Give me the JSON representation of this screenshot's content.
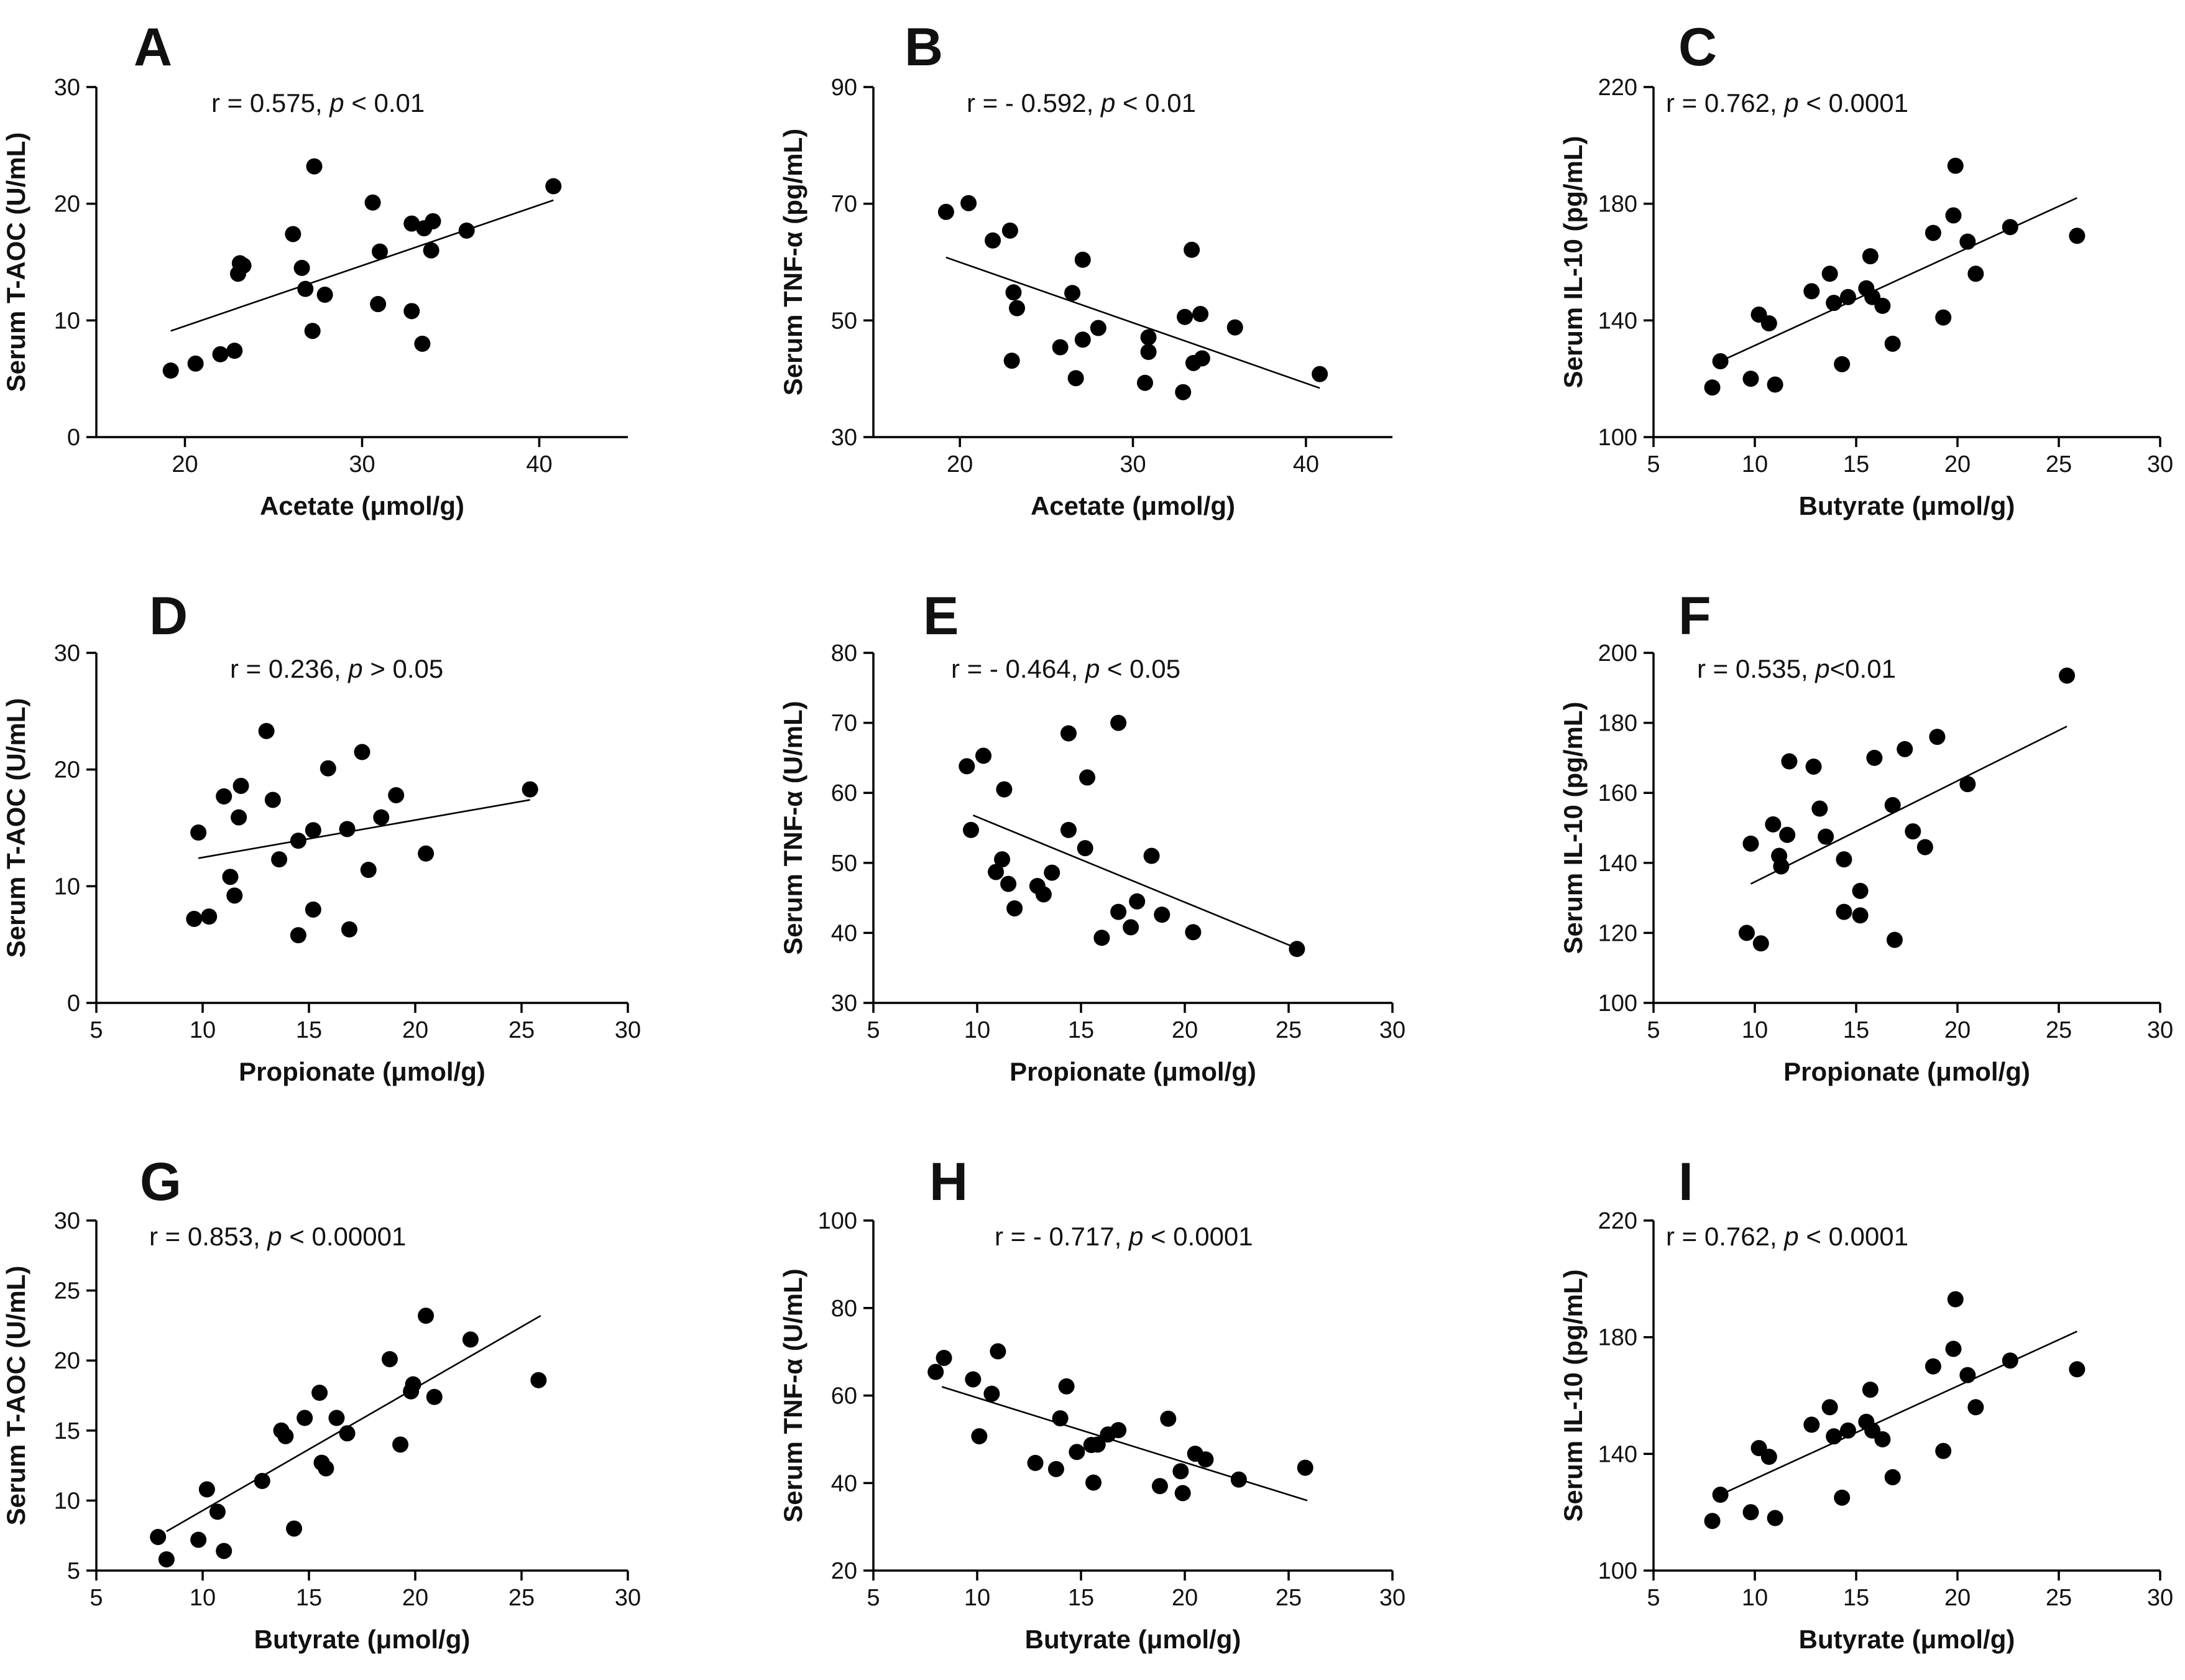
{
  "figure": {
    "background": "#ffffff",
    "mark_color": "#000000"
  },
  "chart_data": [
    {
      "type": "scatter",
      "panel": "A",
      "xlabel": "Acetate (μmol/g)",
      "ylabel": "Serum T-AOC (U/mL)",
      "xlim": [
        15,
        45
      ],
      "ylim": [
        0,
        30
      ],
      "xticks": [
        20,
        30,
        40
      ],
      "yticks": [
        0,
        10,
        20,
        30
      ],
      "annotation": {
        "r_text": "r = 0.575, ",
        "p_var": "p",
        "p_text": " < 0.01"
      },
      "fit": {
        "x": [
          19.2,
          40.8
        ],
        "y": [
          9.1,
          20.3
        ]
      },
      "points": [
        [
          19.2,
          5.7
        ],
        [
          20.6,
          6.3
        ],
        [
          22.0,
          7.1
        ],
        [
          22.8,
          7.4
        ],
        [
          23.0,
          14.0
        ],
        [
          23.1,
          14.9
        ],
        [
          23.3,
          14.7
        ],
        [
          26.1,
          17.4
        ],
        [
          26.6,
          14.5
        ],
        [
          26.8,
          12.7
        ],
        [
          27.2,
          9.1
        ],
        [
          27.3,
          23.2
        ],
        [
          27.9,
          12.2
        ],
        [
          30.6,
          20.1
        ],
        [
          30.9,
          11.4
        ],
        [
          31.0,
          15.9
        ],
        [
          32.8,
          10.8
        ],
        [
          32.8,
          18.3
        ],
        [
          33.4,
          8.0
        ],
        [
          33.5,
          17.9
        ],
        [
          33.9,
          16.0
        ],
        [
          34.0,
          18.5
        ],
        [
          35.9,
          17.7
        ],
        [
          40.8,
          21.5
        ]
      ]
    },
    {
      "type": "scatter",
      "panel": "B",
      "xlabel": "Acetate (μmol/g)",
      "ylabel": "Serum TNF-α (pg/mL)",
      "xlim": [
        15,
        45
      ],
      "ylim": [
        30,
        90
      ],
      "xticks": [
        20,
        30,
        40
      ],
      "yticks": [
        30,
        50,
        70,
        90
      ],
      "annotation": {
        "r_text": "r = - 0.592, ",
        "p_var": "p",
        "p_text": " < 0.01"
      },
      "fit": {
        "x": [
          19.2,
          40.8
        ],
        "y": [
          60.8,
          38.4
        ]
      },
      "points": [
        [
          19.2,
          68.6
        ],
        [
          20.5,
          70.1
        ],
        [
          21.9,
          63.7
        ],
        [
          22.9,
          65.4
        ],
        [
          23.0,
          43.1
        ],
        [
          23.1,
          54.8
        ],
        [
          23.3,
          52.1
        ],
        [
          25.8,
          45.4
        ],
        [
          26.5,
          54.7
        ],
        [
          26.7,
          40.1
        ],
        [
          27.1,
          46.7
        ],
        [
          27.1,
          60.4
        ],
        [
          28.0,
          48.7
        ],
        [
          30.7,
          39.3
        ],
        [
          30.9,
          44.6
        ],
        [
          30.9,
          47.1
        ],
        [
          32.9,
          37.7
        ],
        [
          33.0,
          50.6
        ],
        [
          33.4,
          62.1
        ],
        [
          33.5,
          42.7
        ],
        [
          33.9,
          51.1
        ],
        [
          34.0,
          43.5
        ],
        [
          35.9,
          48.8
        ],
        [
          40.8,
          40.8
        ]
      ]
    },
    {
      "type": "scatter",
      "panel": "C",
      "xlabel": "Butyrate (μmol/g)",
      "ylabel": "Serum IL-10 (pg/mL)",
      "xlim": [
        5,
        30
      ],
      "ylim": [
        100,
        220
      ],
      "xticks": [
        5,
        10,
        15,
        20,
        25,
        30
      ],
      "yticks": [
        100,
        140,
        180,
        220
      ],
      "annotation": {
        "r_text": "r = 0.762, ",
        "p_var": "p",
        "p_text": " < 0.0001"
      },
      "fit": {
        "x": [
          8.3,
          25.9
        ],
        "y": [
          126,
          182
        ]
      },
      "points": [
        [
          7.9,
          117.0
        ],
        [
          8.3,
          126.0
        ],
        [
          9.8,
          120.0
        ],
        [
          10.2,
          142.0
        ],
        [
          10.7,
          139.0
        ],
        [
          11.0,
          118.0
        ],
        [
          12.8,
          150.0
        ],
        [
          13.7,
          156.0
        ],
        [
          13.9,
          146.0
        ],
        [
          14.3,
          125.0
        ],
        [
          14.6,
          148.0
        ],
        [
          15.5,
          151.0
        ],
        [
          15.7,
          162.0
        ],
        [
          15.8,
          148.0
        ],
        [
          16.3,
          145.0
        ],
        [
          16.8,
          132.0
        ],
        [
          18.8,
          170.0
        ],
        [
          19.3,
          141.0
        ],
        [
          19.8,
          176.0
        ],
        [
          19.9,
          193.0
        ],
        [
          20.5,
          167.0
        ],
        [
          20.9,
          156.0
        ],
        [
          22.6,
          172.0
        ],
        [
          25.9,
          169.0
        ]
      ]
    },
    {
      "type": "scatter",
      "panel": "D",
      "xlabel": "Propionate (μmol/g)",
      "ylabel": "Serum T-AOC (U/mL)",
      "xlim": [
        5,
        30
      ],
      "ylim": [
        0,
        30
      ],
      "xticks": [
        5,
        10,
        15,
        20,
        25,
        30
      ],
      "yticks": [
        0,
        10,
        20,
        30
      ],
      "annotation": {
        "r_text": "r = 0.236, ",
        "p_var": "p",
        "p_text": " > 0.05"
      },
      "fit": {
        "x": [
          9.8,
          25.4
        ],
        "y": [
          12.4,
          17.4
        ]
      },
      "points": [
        [
          9.6,
          7.2
        ],
        [
          9.8,
          14.6
        ],
        [
          10.3,
          7.4
        ],
        [
          11.0,
          17.7
        ],
        [
          11.3,
          10.8
        ],
        [
          11.5,
          9.2
        ],
        [
          11.7,
          15.9
        ],
        [
          11.8,
          18.6
        ],
        [
          13.0,
          23.3
        ],
        [
          13.3,
          17.4
        ],
        [
          13.6,
          12.3
        ],
        [
          14.5,
          5.8
        ],
        [
          14.5,
          13.9
        ],
        [
          15.2,
          8.0
        ],
        [
          15.2,
          14.8
        ],
        [
          15.9,
          20.1
        ],
        [
          16.8,
          14.9
        ],
        [
          16.9,
          6.3
        ],
        [
          17.5,
          21.5
        ],
        [
          17.8,
          11.4
        ],
        [
          18.4,
          15.9
        ],
        [
          19.1,
          17.8
        ],
        [
          20.5,
          12.8
        ],
        [
          25.4,
          18.3
        ]
      ]
    },
    {
      "type": "scatter",
      "panel": "E",
      "xlabel": "Propionate (μmol/g)",
      "ylabel": "Serum TNF-α (U/mL)",
      "xlim": [
        5,
        30
      ],
      "ylim": [
        30,
        80
      ],
      "xticks": [
        5,
        10,
        15,
        20,
        25,
        30
      ],
      "yticks": [
        30,
        40,
        50,
        60,
        70,
        80
      ],
      "annotation": {
        "r_text": "r = - 0.464, ",
        "p_var": "p",
        "p_text": " < 0.05"
      },
      "fit": {
        "x": [
          9.8,
          25.4
        ],
        "y": [
          56.8,
          37.8
        ]
      },
      "points": [
        [
          9.5,
          63.8
        ],
        [
          9.7,
          54.7
        ],
        [
          10.3,
          65.3
        ],
        [
          10.9,
          48.7
        ],
        [
          11.2,
          50.5
        ],
        [
          11.3,
          60.5
        ],
        [
          11.5,
          47.0
        ],
        [
          11.8,
          43.5
        ],
        [
          12.9,
          46.7
        ],
        [
          13.2,
          45.5
        ],
        [
          13.6,
          48.6
        ],
        [
          14.4,
          68.5
        ],
        [
          14.4,
          54.7
        ],
        [
          15.2,
          52.1
        ],
        [
          15.3,
          62.2
        ],
        [
          16.0,
          39.3
        ],
        [
          16.8,
          43.0
        ],
        [
          16.8,
          70.0
        ],
        [
          17.4,
          40.8
        ],
        [
          17.7,
          44.5
        ],
        [
          18.4,
          51.0
        ],
        [
          18.9,
          42.6
        ],
        [
          20.4,
          40.1
        ],
        [
          25.4,
          37.7
        ]
      ]
    },
    {
      "type": "scatter",
      "panel": "F",
      "xlabel": "Propionate (μmol/g)",
      "ylabel": "Serum IL-10 (pg/mL)",
      "xlim": [
        5,
        30
      ],
      "ylim": [
        100,
        200
      ],
      "xticks": [
        5,
        10,
        15,
        20,
        25,
        30
      ],
      "yticks": [
        100,
        120,
        140,
        160,
        180,
        200
      ],
      "annotation": {
        "r_text": "r = 0.535, ",
        "p_var": "p",
        "p_text": "<0.01"
      },
      "fit": {
        "x": [
          9.8,
          25.4
        ],
        "y": [
          134,
          179
        ]
      },
      "points": [
        [
          9.6,
          120.0
        ],
        [
          9.8,
          145.5
        ],
        [
          10.3,
          117.0
        ],
        [
          10.9,
          151.0
        ],
        [
          11.2,
          142.0
        ],
        [
          11.3,
          139.0
        ],
        [
          11.6,
          148.0
        ],
        [
          11.7,
          169.0
        ],
        [
          12.9,
          167.5
        ],
        [
          13.2,
          155.5
        ],
        [
          13.5,
          147.5
        ],
        [
          14.4,
          141.0
        ],
        [
          14.4,
          126.0
        ],
        [
          15.2,
          132.0
        ],
        [
          15.2,
          125.0
        ],
        [
          15.9,
          170.0
        ],
        [
          16.9,
          118.0
        ],
        [
          16.8,
          156.5
        ],
        [
          17.4,
          172.5
        ],
        [
          17.8,
          149.0
        ],
        [
          18.4,
          144.5
        ],
        [
          19.0,
          176.0
        ],
        [
          20.5,
          162.5
        ],
        [
          25.4,
          193.5
        ]
      ]
    },
    {
      "type": "scatter",
      "panel": "G",
      "xlabel": "Butyrate (μmol/g)",
      "ylabel": "Serum T-AOC (U/mL)",
      "xlim": [
        5,
        30
      ],
      "ylim": [
        5,
        30
      ],
      "xticks": [
        5,
        10,
        15,
        20,
        25,
        30
      ],
      "yticks": [
        5,
        10,
        15,
        20,
        25,
        30
      ],
      "annotation": {
        "r_text": "r = 0.853, ",
        "p_var": "p",
        "p_text": " < 0.00001"
      },
      "fit": {
        "x": [
          8.3,
          25.9
        ],
        "y": [
          7.8,
          23.2
        ]
      },
      "points": [
        [
          7.9,
          7.4
        ],
        [
          8.3,
          5.8
        ],
        [
          9.8,
          7.2
        ],
        [
          10.2,
          10.8
        ],
        [
          10.7,
          9.2
        ],
        [
          11.0,
          6.4
        ],
        [
          12.8,
          11.4
        ],
        [
          13.7,
          15.0
        ],
        [
          13.9,
          14.6
        ],
        [
          14.3,
          8.0
        ],
        [
          14.8,
          15.9
        ],
        [
          15.5,
          17.7
        ],
        [
          15.6,
          12.7
        ],
        [
          15.8,
          12.3
        ],
        [
          16.3,
          15.9
        ],
        [
          16.8,
          14.8
        ],
        [
          18.8,
          20.1
        ],
        [
          19.3,
          14.0
        ],
        [
          19.8,
          17.8
        ],
        [
          19.9,
          18.3
        ],
        [
          20.5,
          23.2
        ],
        [
          20.9,
          17.4
        ],
        [
          22.6,
          21.5
        ],
        [
          25.8,
          18.6
        ]
      ]
    },
    {
      "type": "scatter",
      "panel": "H",
      "xlabel": "Butyrate (μmol/g)",
      "ylabel": "Serum TNF-α (U/mL)",
      "xlim": [
        5,
        30
      ],
      "ylim": [
        20,
        100
      ],
      "xticks": [
        5,
        10,
        15,
        20,
        25,
        30
      ],
      "yticks": [
        20,
        40,
        60,
        80,
        100
      ],
      "annotation": {
        "r_text": "r = - 0.717, ",
        "p_var": "p",
        "p_text": " < 0.0001"
      },
      "fit": {
        "x": [
          8.3,
          25.9
        ],
        "y": [
          62,
          36
        ]
      },
      "points": [
        [
          8.0,
          65.4
        ],
        [
          8.4,
          68.6
        ],
        [
          9.8,
          63.7
        ],
        [
          10.1,
          50.7
        ],
        [
          10.7,
          60.4
        ],
        [
          11.0,
          70.1
        ],
        [
          12.8,
          44.6
        ],
        [
          13.8,
          43.2
        ],
        [
          14.0,
          54.8
        ],
        [
          14.3,
          62.1
        ],
        [
          14.8,
          47.1
        ],
        [
          15.5,
          48.7
        ],
        [
          15.6,
          40.1
        ],
        [
          15.8,
          48.8
        ],
        [
          16.3,
          51.1
        ],
        [
          16.8,
          52.1
        ],
        [
          18.8,
          39.3
        ],
        [
          19.2,
          54.7
        ],
        [
          19.8,
          42.7
        ],
        [
          19.9,
          37.7
        ],
        [
          20.5,
          46.7
        ],
        [
          21.0,
          45.4
        ],
        [
          22.6,
          40.8
        ],
        [
          25.8,
          43.5
        ]
      ]
    },
    {
      "type": "scatter",
      "panel": "I",
      "xlabel": "Butyrate (μmol/g)",
      "ylabel": "Serum IL-10 (pg/mL)",
      "xlim": [
        5,
        30
      ],
      "ylim": [
        100,
        220
      ],
      "xticks": [
        5,
        10,
        15,
        20,
        25,
        30
      ],
      "yticks": [
        100,
        140,
        180,
        220
      ],
      "annotation": {
        "r_text": "r = 0.762, ",
        "p_var": "p",
        "p_text": " < 0.0001"
      },
      "fit": {
        "x": [
          8.3,
          25.9
        ],
        "y": [
          126,
          182
        ]
      },
      "points": [
        [
          7.9,
          117.0
        ],
        [
          8.3,
          126.0
        ],
        [
          9.8,
          120.0
        ],
        [
          10.2,
          142.0
        ],
        [
          10.7,
          139.0
        ],
        [
          11.0,
          118.0
        ],
        [
          12.8,
          150.0
        ],
        [
          13.7,
          156.0
        ],
        [
          13.9,
          146.0
        ],
        [
          14.3,
          125.0
        ],
        [
          14.6,
          148.0
        ],
        [
          15.5,
          151.0
        ],
        [
          15.7,
          162.0
        ],
        [
          15.8,
          148.0
        ],
        [
          16.3,
          145.0
        ],
        [
          16.8,
          132.0
        ],
        [
          18.8,
          170.0
        ],
        [
          19.3,
          141.0
        ],
        [
          19.8,
          176.0
        ],
        [
          19.9,
          193.0
        ],
        [
          20.5,
          167.0
        ],
        [
          20.9,
          156.0
        ],
        [
          22.6,
          172.0
        ],
        [
          25.9,
          169.0
        ]
      ]
    }
  ]
}
